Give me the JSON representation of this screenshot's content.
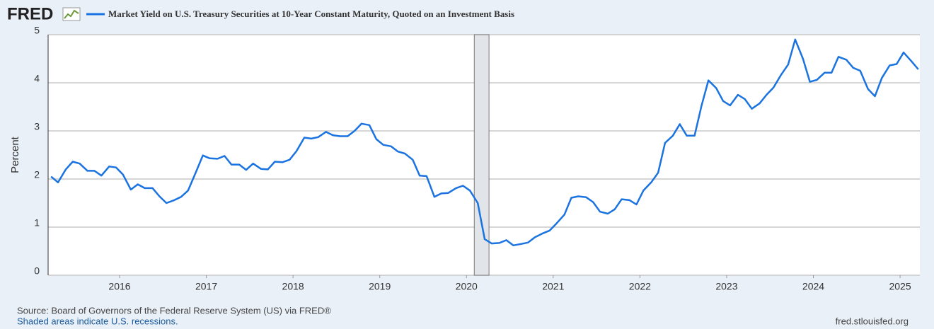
{
  "chart_data": {
    "type": "line",
    "logo": "FRED",
    "ylabel": "Percent",
    "source": "Source: Board of Governors of the Federal Reserve System (US) via FRED®",
    "note": "Shaded areas indicate U.S. recessions.",
    "site": "fred.stlouisfed.org",
    "xlim": [
      2015.176,
      2025.228
    ],
    "xticks": [
      2016,
      2017,
      2018,
      2019,
      2020,
      2021,
      2022,
      2023,
      2024,
      2025
    ],
    "ylim": [
      0,
      5
    ],
    "yticks": [
      0,
      1,
      2,
      3,
      4,
      5
    ],
    "grid": true,
    "recessions": [
      [
        2020.09,
        2020.26
      ]
    ],
    "x": [
      2015.21,
      2015.29,
      2015.38,
      2015.46,
      2015.54,
      2015.63,
      2015.71,
      2015.79,
      2015.88,
      2015.96,
      2016.04,
      2016.13,
      2016.21,
      2016.29,
      2016.38,
      2016.46,
      2016.54,
      2016.63,
      2016.71,
      2016.79,
      2016.88,
      2016.96,
      2017.04,
      2017.13,
      2017.21,
      2017.29,
      2017.38,
      2017.46,
      2017.54,
      2017.63,
      2017.71,
      2017.79,
      2017.88,
      2017.96,
      2018.04,
      2018.13,
      2018.21,
      2018.29,
      2018.38,
      2018.46,
      2018.54,
      2018.63,
      2018.71,
      2018.79,
      2018.88,
      2018.96,
      2019.04,
      2019.13,
      2019.21,
      2019.29,
      2019.38,
      2019.46,
      2019.54,
      2019.63,
      2019.71,
      2019.79,
      2019.88,
      2019.96,
      2020.04,
      2020.13,
      2020.21,
      2020.29,
      2020.38,
      2020.46,
      2020.54,
      2020.63,
      2020.71,
      2020.79,
      2020.88,
      2020.96,
      2021.04,
      2021.13,
      2021.21,
      2021.29,
      2021.38,
      2021.46,
      2021.54,
      2021.63,
      2021.71,
      2021.79,
      2021.88,
      2021.96,
      2022.04,
      2022.13,
      2022.21,
      2022.29,
      2022.38,
      2022.46,
      2022.54,
      2022.63,
      2022.71,
      2022.79,
      2022.88,
      2022.96,
      2023.04,
      2023.13,
      2023.21,
      2023.29,
      2023.38,
      2023.46,
      2023.54,
      2023.63,
      2023.71,
      2023.79,
      2023.88,
      2023.96,
      2024.04,
      2024.13,
      2024.21,
      2024.29,
      2024.38,
      2024.46,
      2024.54,
      2024.63,
      2024.71,
      2024.79,
      2024.88,
      2024.96,
      2025.04,
      2025.13,
      2025.21
    ],
    "series": [
      {
        "name": "Market Yield on U.S. Treasury Securities at 10-Year Constant Maturity, Quoted on an Investment Basis",
        "color": "#1a73e0",
        "values": [
          2.05,
          1.93,
          2.2,
          2.36,
          2.32,
          2.17,
          2.17,
          2.07,
          2.26,
          2.24,
          2.09,
          1.78,
          1.89,
          1.81,
          1.81,
          1.64,
          1.5,
          1.56,
          1.63,
          1.76,
          2.14,
          2.49,
          2.43,
          2.42,
          2.48,
          2.3,
          2.3,
          2.19,
          2.32,
          2.21,
          2.2,
          2.36,
          2.35,
          2.4,
          2.58,
          2.86,
          2.84,
          2.87,
          2.98,
          2.91,
          2.89,
          2.89,
          3.0,
          3.15,
          3.12,
          2.83,
          2.71,
          2.68,
          2.57,
          2.53,
          2.4,
          2.07,
          2.06,
          1.63,
          1.7,
          1.71,
          1.81,
          1.86,
          1.76,
          1.5,
          0.75,
          0.66,
          0.67,
          0.73,
          0.62,
          0.65,
          0.68,
          0.79,
          0.87,
          0.93,
          1.08,
          1.26,
          1.61,
          1.64,
          1.62,
          1.52,
          1.32,
          1.28,
          1.37,
          1.58,
          1.56,
          1.47,
          1.76,
          1.93,
          2.13,
          2.75,
          2.9,
          3.14,
          2.9,
          2.9,
          3.52,
          4.05,
          3.89,
          3.62,
          3.53,
          3.75,
          3.66,
          3.46,
          3.57,
          3.75,
          3.9,
          4.17,
          4.38,
          4.9,
          4.5,
          4.02,
          4.06,
          4.21,
          4.21,
          4.54,
          4.48,
          4.31,
          4.25,
          3.87,
          3.72,
          4.1,
          4.36,
          4.39,
          4.63,
          4.45,
          4.28
        ]
      }
    ]
  }
}
